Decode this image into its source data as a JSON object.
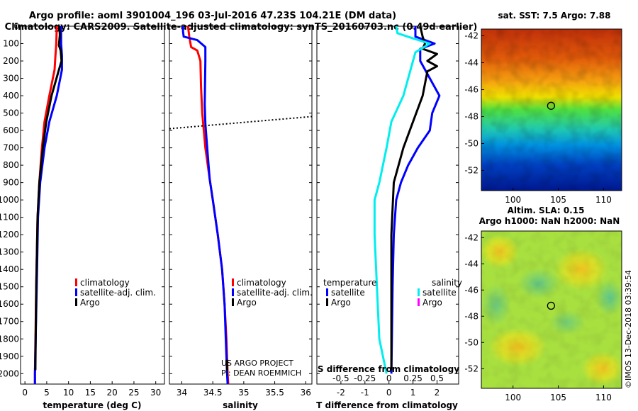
{
  "title": {
    "line1": "Argo profile: aoml 3901004_196 03-Jul-2016 47.23S 104.21E (DM data)",
    "line2": "Climatology: CARS2009. Satellite-adjusted climatology: synTS_20160703.nc (0.49d earlier)"
  },
  "colors": {
    "climatology": "#ff0000",
    "satellite": "#0000ff",
    "argo": "#000000",
    "cyan": "#00eeee",
    "magenta": "#ff00ff"
  },
  "depth_ticks": [
    "0",
    "100",
    "200",
    "300",
    "400",
    "500",
    "600",
    "700",
    "800",
    "900",
    "1000",
    "1100",
    "1200",
    "1300",
    "1400",
    "1500",
    "1600",
    "1700",
    "1800",
    "1900",
    "2000"
  ],
  "chart_data": [
    {
      "type": "line",
      "id": "temperature",
      "xlabel": "temperature (deg C)",
      "ylabel": "depth",
      "xlim": [
        -1,
        32
      ],
      "ylim": [
        2060,
        0
      ],
      "xticks": [
        "0",
        "5",
        "10",
        "15",
        "20",
        "25",
        "30"
      ],
      "legend": [
        "climatology",
        "satellite-adj. clim.",
        "Argo"
      ],
      "series": [
        {
          "name": "climatology",
          "color": "#ff0000",
          "depth": [
            0,
            100,
            170,
            250,
            400,
            550,
            700,
            900,
            1100,
            1500,
            2000,
            2060
          ],
          "values": [
            7.3,
            7.2,
            7.0,
            6.8,
            5.6,
            4.5,
            3.9,
            3.3,
            2.9,
            2.6,
            2.3,
            2.3
          ]
        },
        {
          "name": "satellite-adj. clim.",
          "color": "#0000ff",
          "depth": [
            0,
            100,
            170,
            250,
            400,
            550,
            700,
            900,
            1100,
            1500,
            2000,
            2060
          ],
          "values": [
            8.3,
            8.3,
            8.5,
            8.5,
            7.3,
            5.6,
            4.5,
            3.5,
            3.0,
            2.7,
            2.3,
            2.3
          ]
        },
        {
          "name": "Argo",
          "color": "#000000",
          "depth": [
            0,
            50,
            110,
            140,
            200,
            260,
            400,
            550,
            700,
            900,
            1100,
            1500,
            1980
          ],
          "values": [
            7.9,
            8.0,
            7.8,
            8.2,
            8.4,
            7.7,
            6.1,
            4.9,
            4.1,
            3.3,
            2.9,
            2.6,
            2.4
          ]
        }
      ]
    },
    {
      "type": "line",
      "id": "salinity",
      "xlabel": "salinity",
      "ylabel": "depth",
      "xlim": [
        33.8,
        36.1
      ],
      "ylim": [
        2060,
        0
      ],
      "xticks": [
        "34",
        "34.5",
        "35",
        "35.5",
        "36"
      ],
      "legend": [
        "climatology",
        "satellite-adj. clim.",
        "Argo"
      ],
      "mld_line": {
        "x": [
          33.8,
          36.1
        ],
        "depth": [
          590,
          520
        ]
      },
      "notes": [
        "US ARGO PROJECT",
        "PI: DEAN ROEMMICH"
      ],
      "series": [
        {
          "name": "climatology",
          "color": "#ff0000",
          "depth": [
            0,
            60,
            120,
            140,
            200,
            350,
            500,
            700,
            880,
            1000,
            1200,
            1400,
            1600,
            1800,
            2000,
            2060
          ],
          "values": [
            34.1,
            34.12,
            34.15,
            34.25,
            34.3,
            34.31,
            34.33,
            34.38,
            34.45,
            34.5,
            34.58,
            34.65,
            34.69,
            34.72,
            34.74,
            34.75
          ]
        },
        {
          "name": "satellite-adj. clim.",
          "color": "#0000ff",
          "depth": [
            0,
            30,
            60,
            80,
            120,
            200,
            450,
            560,
            700,
            880,
            1000,
            1200,
            1400,
            1600,
            1800,
            2000,
            2060
          ],
          "values": [
            34.02,
            34.02,
            34.03,
            34.25,
            34.38,
            34.38,
            34.37,
            34.38,
            34.41,
            34.45,
            34.5,
            34.58,
            34.65,
            34.69,
            34.71,
            34.73,
            34.74
          ]
        },
        {
          "name": "Argo",
          "color": "#000000",
          "depth": [
            1920,
            1980
          ],
          "values": [
            34.73,
            34.73
          ]
        }
      ]
    },
    {
      "type": "line",
      "id": "difference",
      "xlabel": "T difference from climatology",
      "x2label": "S difference from climatology",
      "ylabel": "depth",
      "xlim": [
        -3,
        2.9
      ],
      "ylim": [
        2060,
        0
      ],
      "xticks": [
        "-2",
        "-1",
        "0",
        "1",
        "2"
      ],
      "x2ticks": [
        "-0.5",
        "-0.25",
        "0",
        "0.25",
        "0.5"
      ],
      "legend_left_title": "temperature",
      "legend_right_title": "salinity",
      "legend_left": [
        "satellite",
        "Argo"
      ],
      "legend_right": [
        "satellite",
        "Argo"
      ],
      "series": [
        {
          "name": "temperature satellite",
          "color": "#0000ff",
          "depth": [
            0,
            60,
            100,
            130,
            200,
            300,
            400,
            500,
            600,
            700,
            800,
            900,
            1000,
            1200,
            1500,
            1800,
            2000
          ],
          "values": [
            1.1,
            1.1,
            1.9,
            1.3,
            1.3,
            1.7,
            2.1,
            1.8,
            1.7,
            1.2,
            0.8,
            0.5,
            0.3,
            0.2,
            0.15,
            0.12,
            0.1
          ]
        },
        {
          "name": "temperature Argo",
          "color": "#000000",
          "depth": [
            0,
            60,
            100,
            130,
            160,
            200,
            230,
            260,
            400,
            550,
            700,
            900,
            1200,
            1500,
            1800,
            1980
          ],
          "values": [
            1.3,
            1.4,
            1.5,
            1.4,
            2.0,
            1.6,
            2.0,
            1.6,
            1.4,
            1.0,
            0.6,
            0.2,
            0.1,
            0.1,
            0.1,
            0.1
          ]
        },
        {
          "name": "salinity satellite",
          "color": "#00eeee",
          "depth": [
            0,
            40,
            70,
            100,
            150,
            250,
            400,
            550,
            700,
            900,
            1000,
            1200,
            1500,
            1800,
            2000
          ],
          "values": [
            0.3,
            0.35,
            1.0,
            1.7,
            1.1,
            0.9,
            0.6,
            0.1,
            -0.1,
            -0.4,
            -0.6,
            -0.6,
            -0.5,
            -0.4,
            -0.1
          ]
        }
      ]
    },
    {
      "type": "heatmap",
      "id": "sst_map",
      "title": "sat. SST: 7.5 Argo: 7.88",
      "xlim": [
        96.5,
        112
      ],
      "ylim": [
        -53.5,
        -41.5
      ],
      "xticks": [
        "100",
        "105",
        "110"
      ],
      "yticks": [
        "-42",
        "-44",
        "-46",
        "-48",
        "-50",
        "-52"
      ],
      "marker": {
        "lon": 104.2,
        "lat": -47.2
      }
    },
    {
      "type": "heatmap",
      "id": "sla_map",
      "title": "Altim. SLA: 0.15",
      "subtitle": "Argo h1000: NaN h2000: NaN",
      "xlim": [
        96.5,
        112
      ],
      "ylim": [
        -53.5,
        -41.5
      ],
      "xticks": [
        "100",
        "105",
        "110"
      ],
      "yticks": [
        "-42",
        "-44",
        "-46",
        "-48",
        "-50",
        "-52"
      ],
      "marker": {
        "lon": 104.2,
        "lat": -47.2
      }
    }
  ],
  "credit": "©IMOS 13-Dec-2018 03:39:54"
}
